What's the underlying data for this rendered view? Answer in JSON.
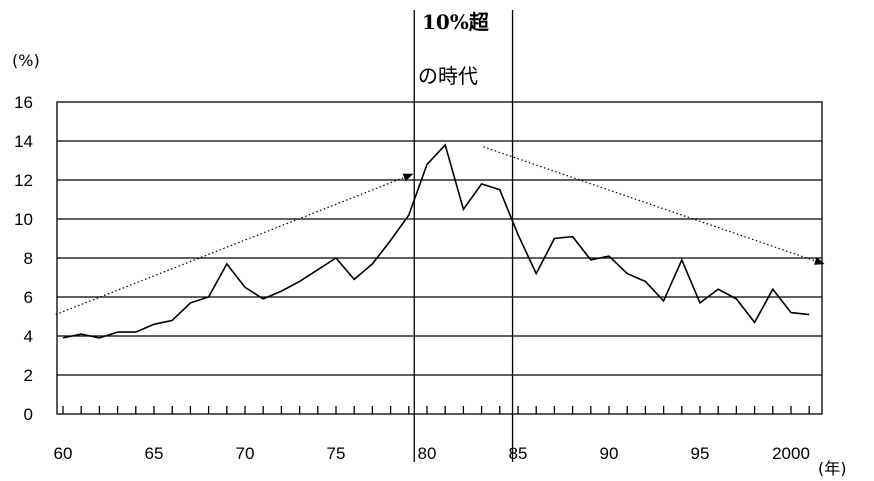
{
  "chart_data": {
    "type": "line",
    "ylabel": "(%)",
    "xlabel": "(年)",
    "ylim": [
      0,
      16
    ],
    "y_ticks": [
      0,
      2,
      4,
      6,
      8,
      10,
      12,
      14,
      16
    ],
    "xlim": [
      1960,
      2001
    ],
    "x_tick_labels": [
      {
        "year": 1960,
        "label": "60"
      },
      {
        "year": 1965,
        "label": "65"
      },
      {
        "year": 1970,
        "label": "70"
      },
      {
        "year": 1975,
        "label": "75"
      },
      {
        "year": 1980,
        "label": "80"
      },
      {
        "year": 1985,
        "label": "85"
      },
      {
        "year": 1990,
        "label": "90"
      },
      {
        "year": 1995,
        "label": "95"
      },
      {
        "year": 2000,
        "label": "2000"
      }
    ],
    "grid": true,
    "series": [
      {
        "x": [
          1960,
          1961,
          1962,
          1963,
          1964,
          1965,
          1966,
          1967,
          1968,
          1969,
          1970,
          1971,
          1972,
          1973,
          1974,
          1975,
          1976,
          1977,
          1978,
          1979,
          1980,
          1981,
          1982,
          1983,
          1984,
          1985,
          1986,
          1987,
          1988,
          1989,
          1990,
          1991,
          1992,
          1993,
          1994,
          1995,
          1996,
          1997,
          1998,
          1999,
          2000,
          2001
        ],
        "values": [
          3.9,
          4.1,
          3.9,
          4.2,
          4.2,
          4.6,
          4.8,
          5.7,
          6.0,
          7.7,
          6.5,
          5.9,
          6.3,
          6.8,
          7.4,
          8.0,
          6.9,
          7.7,
          8.9,
          10.2,
          12.8,
          13.8,
          10.5,
          11.8,
          11.5,
          9.2,
          7.2,
          9.0,
          9.1,
          7.9,
          8.1,
          7.2,
          6.8,
          5.8,
          7.9,
          5.7,
          6.4,
          5.9,
          4.7,
          6.4,
          5.2,
          5.1
        ]
      }
    ],
    "annotation_lines": [
      {
        "x": 1979.3
      },
      {
        "x": 1984.7
      }
    ],
    "trend_arrows": [
      {
        "from": [
          1959.6,
          5.1
        ],
        "to": [
          1979.2,
          12.3
        ]
      },
      {
        "from": [
          1983.1,
          13.7
        ],
        "to": [
          2001.8,
          7.7
        ]
      }
    ],
    "annotation_title": "10%超",
    "annotation_subtitle": "の時代"
  }
}
